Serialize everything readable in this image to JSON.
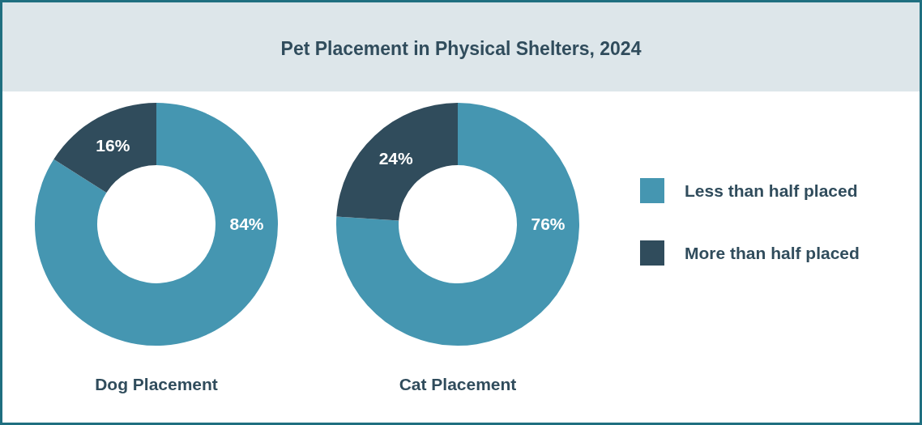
{
  "chart_data": [
    {
      "type": "donut",
      "xlabel": "Dog Placement",
      "categories": [
        null,
        null
      ],
      "values": [
        84,
        16
      ],
      "colors": [
        "#4596b1",
        "#304c5c"
      ],
      "value_labels": [
        "84%",
        "16%"
      ]
    },
    {
      "type": "donut",
      "title": "Pet Placement in Physical Shelters, 2024",
      "xlabel": "Cat Placement",
      "categories": [
        "Less than half placed",
        "More than half placed"
      ],
      "values": [
        76,
        24
      ],
      "colors": [
        "#4596b1",
        "#304c5c"
      ],
      "value_labels": [
        "76%",
        "24%"
      ],
      "legend": "right"
    }
  ]
}
